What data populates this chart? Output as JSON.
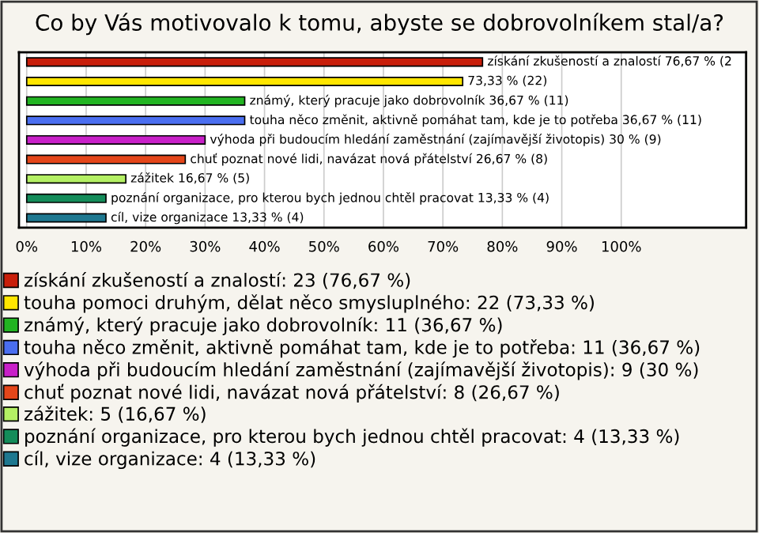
{
  "chart_data": {
    "type": "bar",
    "orientation": "horizontal",
    "title": "Co by Vás motivovalo k tomu, abyste se dobrovolníkem stal/a?",
    "categories": [
      null,
      null,
      null,
      null,
      null,
      null,
      null,
      null,
      null
    ],
    "series": [
      {
        "name": "získání zkušeností a znalostí: 23 (76,67 %)",
        "color": "#c81e0a",
        "values": [
          76.67,
          null,
          null,
          null,
          null,
          null,
          null,
          null,
          null
        ],
        "value_labels": [
          "získání zkušeností a znalostí 76,67 % (2",
          null,
          null,
          null,
          null,
          null,
          null,
          null,
          null
        ]
      },
      {
        "name": "touha pomoci druhým, dělat něco smysluplného: 22 (73,33 %)",
        "color": "#ffe600",
        "values": [
          null,
          73.33,
          null,
          null,
          null,
          null,
          null,
          null,
          null
        ],
        "value_labels": [
          null,
          "73,33 % (22)",
          null,
          null,
          null,
          null,
          null,
          null,
          null
        ]
      },
      {
        "name": "známý, který pracuje jako dobrovolník: 11 (36,67 %)",
        "color": "#22b422",
        "values": [
          null,
          null,
          36.67,
          null,
          null,
          null,
          null,
          null,
          null
        ],
        "value_labels": [
          null,
          null,
          "známý, který pracuje jako dobrovolník 36,67 % (11)",
          null,
          null,
          null,
          null,
          null,
          null
        ]
      },
      {
        "name": "touha něco změnit, aktivně pomáhat tam, kde je to potřeba: 11 (36,67 %)",
        "color": "#4a6ef0",
        "values": [
          null,
          null,
          null,
          36.67,
          null,
          null,
          null,
          null,
          null
        ],
        "value_labels": [
          null,
          null,
          null,
          "touha něco změnit, aktivně pomáhat tam, kde je to potřeba 36,67 % (11)",
          null,
          null,
          null,
          null,
          null
        ]
      },
      {
        "name": "výhoda při budoucím hledání zaměstnání (zajímavější životopis): 9 (30 %)",
        "color": "#c820c8",
        "values": [
          null,
          null,
          null,
          null,
          30,
          null,
          null,
          null,
          null
        ],
        "value_labels": [
          null,
          null,
          null,
          null,
          "výhoda při budoucím hledání zaměstnání (zajímavější životopis) 30 % (9)",
          null,
          null,
          null,
          null
        ]
      },
      {
        "name": "chuť poznat nové lidi, navázat nová přátelství: 8 (26,67 %)",
        "color": "#e4461a",
        "values": [
          null,
          null,
          null,
          null,
          null,
          26.67,
          null,
          null,
          null
        ],
        "value_labels": [
          null,
          null,
          null,
          null,
          null,
          "chuť poznat nové lidi, navázat nová přátelství 26,67 % (8)",
          null,
          null,
          null
        ]
      },
      {
        "name": "zážitek: 5 (16,67 %)",
        "color": "#b4f064",
        "values": [
          null,
          null,
          null,
          null,
          null,
          null,
          16.67,
          null,
          null
        ],
        "value_labels": [
          null,
          null,
          null,
          null,
          null,
          null,
          "zážitek 16,67 % (5)",
          null,
          null
        ]
      },
      {
        "name": "poznání organizace, pro kterou bych jednou chtěl pracovat: 4 (13,33 %)",
        "color": "#148c5a",
        "values": [
          null,
          null,
          null,
          null,
          null,
          null,
          null,
          13.33,
          null
        ],
        "value_labels": [
          null,
          null,
          null,
          null,
          null,
          null,
          null,
          "poznání organizace, pro kterou bych jednou chtěl pracovat 13,33 % (4)",
          null
        ]
      },
      {
        "name": "cíl, vize organizace: 4 (13,33 %)",
        "color": "#1e7890",
        "values": [
          null,
          null,
          null,
          null,
          null,
          null,
          null,
          null,
          13.33
        ],
        "value_labels": [
          null,
          null,
          null,
          null,
          null,
          null,
          null,
          null,
          "cíl, vize organizace 13,33 % (4)"
        ]
      }
    ],
    "xlim": [
      -1.3,
      121
    ],
    "xticks": [
      {
        "value": 0,
        "label": "0%"
      },
      {
        "value": 10,
        "label": "10%"
      },
      {
        "value": 20,
        "label": "20%"
      },
      {
        "value": 30,
        "label": "30%"
      },
      {
        "value": 40,
        "label": "40%"
      },
      {
        "value": 50,
        "label": "50%"
      },
      {
        "value": 60,
        "label": "60%"
      },
      {
        "value": 70,
        "label": "70%"
      },
      {
        "value": 80,
        "label": "80%"
      },
      {
        "value": 90,
        "label": "90%"
      },
      {
        "value": 100,
        "label": "100%"
      }
    ],
    "grid": "x",
    "legend": "bottom"
  }
}
